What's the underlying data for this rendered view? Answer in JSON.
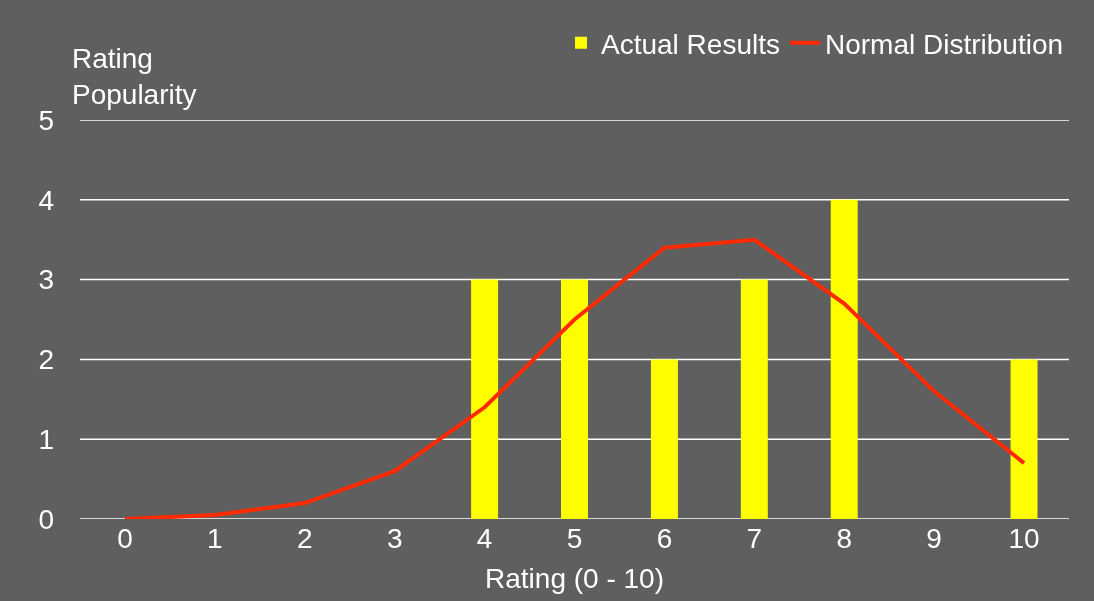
{
  "chart_data": {
    "type": "bar",
    "xlabel": "Rating (0 - 10)",
    "ylabel": "Rating Popularity",
    "categories": [
      "0",
      "1",
      "2",
      "3",
      "4",
      "5",
      "6",
      "7",
      "8",
      "9",
      "10"
    ],
    "series": [
      {
        "name": "Actual Results",
        "color": "#ffff00",
        "values": [
          0,
          0,
          0,
          0,
          3,
          3,
          2,
          3,
          4,
          0,
          2
        ]
      },
      {
        "name": "Normal Distribution",
        "type": "line",
        "color": "#ff2a00",
        "values": [
          0.0,
          0.05,
          0.2,
          0.6,
          1.4,
          2.5,
          3.4,
          3.5,
          2.7,
          1.6,
          0.7
        ]
      }
    ],
    "ylim": [
      0,
      5
    ],
    "yticks": [
      0,
      1,
      2,
      3,
      4,
      5
    ],
    "grid": "y",
    "legend": "top right",
    "marker": "none",
    "line_style": "solid"
  }
}
